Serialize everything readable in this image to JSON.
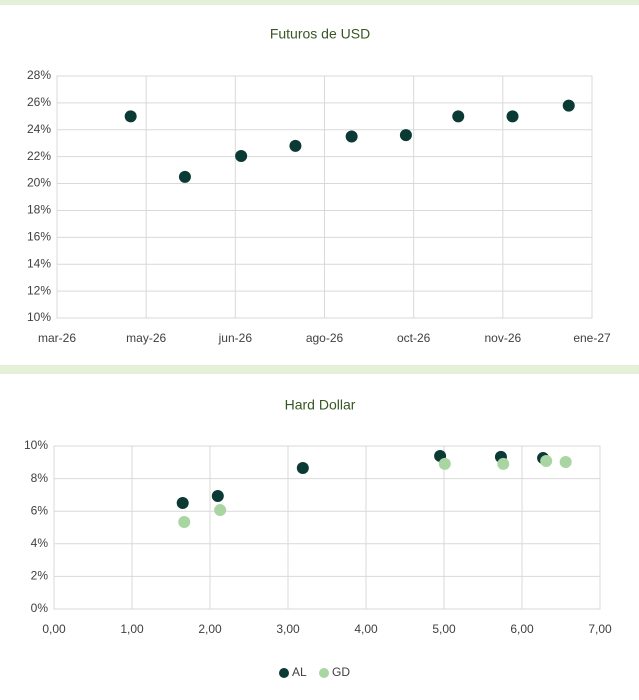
{
  "chart_data": [
    {
      "type": "scatter",
      "title": "Futuros de USD",
      "x": [
        46120,
        46148,
        46177,
        46205,
        46234,
        46262,
        46289,
        46317,
        46346
      ],
      "values": [
        25.0,
        20.5,
        22.05,
        22.8,
        23.5,
        23.6,
        25.0,
        25.0,
        25.8
      ],
      "color": "#0b3a34",
      "xlim": [
        46082,
        46358
      ],
      "xticks": [
        {
          "value": 46082,
          "label": "mar-26"
        },
        {
          "value": 46128,
          "label": "may-26"
        },
        {
          "value": 46174,
          "label": "jun-26"
        },
        {
          "value": 46220,
          "label": "ago-26"
        },
        {
          "value": 46266,
          "label": "oct-26"
        },
        {
          "value": 46312,
          "label": "nov-26"
        },
        {
          "value": 46358,
          "label": "ene-27"
        }
      ],
      "ylim": [
        10,
        28
      ],
      "yticks": [
        {
          "value": 10,
          "label": "10%"
        },
        {
          "value": 12,
          "label": "12%"
        },
        {
          "value": 14,
          "label": "14%"
        },
        {
          "value": 16,
          "label": "16%"
        },
        {
          "value": 18,
          "label": "18%"
        },
        {
          "value": 20,
          "label": "20%"
        },
        {
          "value": 22,
          "label": "22%"
        },
        {
          "value": 24,
          "label": "24%"
        },
        {
          "value": 26,
          "label": "26%"
        },
        {
          "value": 28,
          "label": "28%"
        }
      ],
      "grid": true
    },
    {
      "type": "scatter",
      "title": "Hard Dollar",
      "series": [
        {
          "name": "AL",
          "color": "#0b3a34",
          "x": [
            1.65,
            2.1,
            3.19,
            4.95,
            5.73,
            6.27
          ],
          "values": [
            6.5,
            6.93,
            8.65,
            9.39,
            9.33,
            9.26
          ]
        },
        {
          "name": "GD",
          "color": "#a8d5a2",
          "x": [
            1.67,
            2.13,
            5.01,
            5.76,
            6.31,
            6.56
          ],
          "values": [
            5.34,
            6.07,
            8.9,
            8.9,
            9.08,
            9.02
          ]
        }
      ],
      "xlim": [
        0,
        7
      ],
      "xticks": [
        {
          "value": 0,
          "label": "0,00"
        },
        {
          "value": 1,
          "label": "1,00"
        },
        {
          "value": 2,
          "label": "2,00"
        },
        {
          "value": 3,
          "label": "3,00"
        },
        {
          "value": 4,
          "label": "4,00"
        },
        {
          "value": 5,
          "label": "5,00"
        },
        {
          "value": 6,
          "label": "6,00"
        },
        {
          "value": 7,
          "label": "7,00"
        }
      ],
      "ylim": [
        0,
        10
      ],
      "yticks": [
        {
          "value": 0,
          "label": "0%"
        },
        {
          "value": 2,
          "label": "2%"
        },
        {
          "value": 4,
          "label": "4%"
        },
        {
          "value": 6,
          "label": "6%"
        },
        {
          "value": 8,
          "label": "8%"
        },
        {
          "value": 10,
          "label": "10%"
        }
      ],
      "grid": true,
      "legend": "bottom"
    }
  ]
}
